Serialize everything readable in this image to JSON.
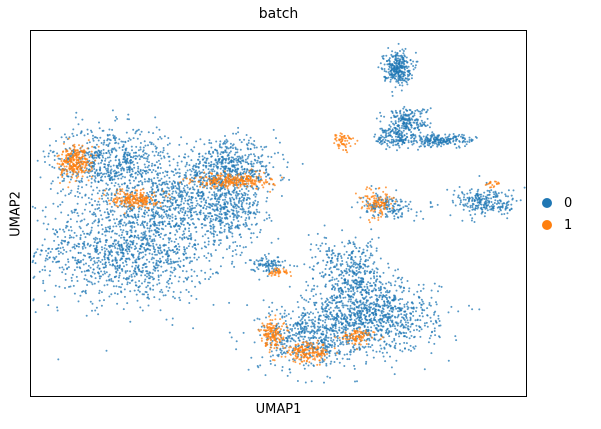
{
  "chart_data": {
    "type": "scatter",
    "title": "batch",
    "xlabel": "UMAP1",
    "ylabel": "UMAP2",
    "xlim": [
      0,
      100
    ],
    "ylim": [
      0,
      100
    ],
    "grid": false,
    "ticks": false,
    "legend_position": "right",
    "series": [
      {
        "name": "0",
        "color": "#1f77b4"
      },
      {
        "name": "1",
        "color": "#ff7f0e"
      }
    ],
    "clusters": [
      {
        "series": "0",
        "cx": 20,
        "cy": 40,
        "rx": 17,
        "ry": 13,
        "n": 1300
      },
      {
        "series": "0",
        "cx": 16,
        "cy": 64,
        "rx": 11,
        "ry": 9,
        "n": 700
      },
      {
        "series": "0",
        "cx": 29,
        "cy": 54,
        "rx": 13,
        "ry": 8,
        "n": 500
      },
      {
        "series": "0",
        "cx": 40,
        "cy": 62,
        "rx": 9,
        "ry": 7,
        "n": 600
      },
      {
        "series": "0",
        "cx": 40,
        "cy": 50,
        "rx": 6,
        "ry": 7,
        "n": 300
      },
      {
        "series": "0",
        "cx": 69,
        "cy": 22,
        "rx": 12,
        "ry": 9,
        "n": 1000
      },
      {
        "series": "0",
        "cx": 56,
        "cy": 16,
        "rx": 9,
        "ry": 8,
        "n": 500
      },
      {
        "series": "0",
        "cx": 65,
        "cy": 32,
        "rx": 6,
        "ry": 6,
        "n": 200
      },
      {
        "series": "0",
        "cx": 74,
        "cy": 90,
        "rx": 2.5,
        "ry": 4,
        "n": 300
      },
      {
        "series": "0",
        "cx": 76,
        "cy": 75,
        "rx": 4,
        "ry": 4,
        "n": 220
      },
      {
        "series": "0",
        "cx": 82,
        "cy": 70,
        "rx": 7,
        "ry": 1.6,
        "n": 220
      },
      {
        "series": "0",
        "cx": 73,
        "cy": 71,
        "rx": 3,
        "ry": 3,
        "n": 120
      },
      {
        "series": "0",
        "cx": 92,
        "cy": 53,
        "rx": 6,
        "ry": 3.5,
        "n": 240
      },
      {
        "series": "0",
        "cx": 72,
        "cy": 52,
        "rx": 5,
        "ry": 3,
        "n": 150
      },
      {
        "series": "0",
        "cx": 48,
        "cy": 36,
        "rx": 3,
        "ry": 2,
        "n": 90
      },
      {
        "series": "0",
        "cx": 64,
        "cy": 38,
        "rx": 7,
        "ry": 5,
        "n": 150
      },
      {
        "series": "1",
        "cx": 9,
        "cy": 64,
        "rx": 3,
        "ry": 4,
        "n": 260
      },
      {
        "series": "1",
        "cx": 21,
        "cy": 54,
        "rx": 4,
        "ry": 2.2,
        "n": 200
      },
      {
        "series": "1",
        "cx": 41,
        "cy": 59,
        "rx": 7,
        "ry": 1.8,
        "n": 260
      },
      {
        "series": "1",
        "cx": 49,
        "cy": 17,
        "rx": 2.5,
        "ry": 4,
        "n": 150
      },
      {
        "series": "1",
        "cx": 56,
        "cy": 12,
        "rx": 4,
        "ry": 2.5,
        "n": 170
      },
      {
        "series": "1",
        "cx": 66,
        "cy": 16,
        "rx": 3,
        "ry": 2,
        "n": 90
      },
      {
        "series": "1",
        "cx": 70,
        "cy": 53,
        "rx": 3,
        "ry": 4,
        "n": 110
      },
      {
        "series": "1",
        "cx": 63,
        "cy": 70,
        "rx": 2,
        "ry": 2,
        "n": 60
      },
      {
        "series": "1",
        "cx": 50,
        "cy": 34,
        "rx": 1.8,
        "ry": 1.2,
        "n": 40
      },
      {
        "series": "1",
        "cx": 93,
        "cy": 58,
        "rx": 1.5,
        "ry": 1,
        "n": 20
      }
    ]
  }
}
